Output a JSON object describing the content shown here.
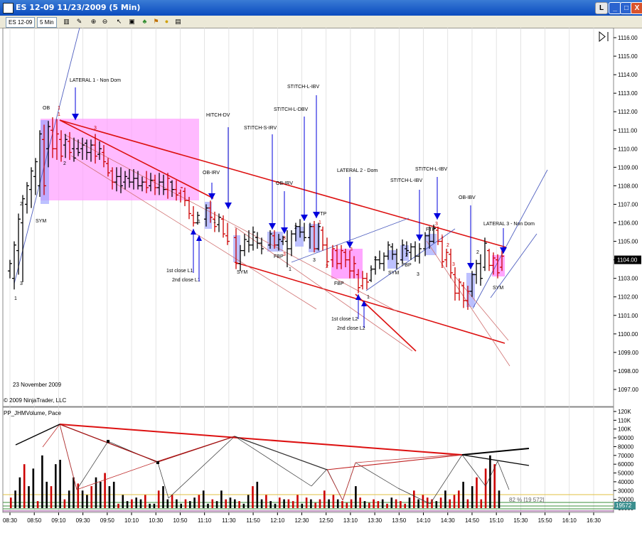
{
  "window": {
    "title": "ES 12-09  11/23/2009 (5 Min)",
    "btn_l": "L",
    "btn_min": "_",
    "btn_max": "□",
    "btn_close": "X"
  },
  "toolbar": {
    "instrument": "ES 12-09",
    "interval": "5 Min",
    "icons": [
      "bar-style-icon",
      "pencil-icon",
      "zoom-in-icon",
      "zoom-out-icon",
      "pointer-icon",
      "data-box-icon",
      "strategy-icon",
      "indicator-icon",
      "gold-icon",
      "properties-icon"
    ]
  },
  "chart": {
    "date_label": "23 November 2009",
    "copyright": "© 2009 NinjaTrader, LLC",
    "price_axis": [
      "1116.00",
      "1115.00",
      "1114.00",
      "1113.00",
      "1112.00",
      "1111.00",
      "1110.00",
      "1109.00",
      "1108.00",
      "1107.00",
      "1106.00",
      "1105.00",
      "1104.00",
      "1103.00",
      "1102.00",
      "1101.00",
      "1100.00",
      "1099.00",
      "1098.00",
      "1097.00"
    ],
    "current_price": "1104.00",
    "time_axis": [
      "08:30",
      "08:50",
      "09:10",
      "09:30",
      "09:50",
      "10:10",
      "10:30",
      "10:50",
      "11:10",
      "11:30",
      "11:50",
      "12:10",
      "12:30",
      "12:50",
      "13:10",
      "13:30",
      "13:50",
      "14:10",
      "14:30",
      "14:50",
      "15:10",
      "15:30",
      "15:50",
      "16:10",
      "16:30"
    ],
    "annotations": [
      "LATERAL 1 - Non Dom",
      "HITCH-DV",
      "STITCH-S-IRV",
      "STITCH-L-DBV",
      "STITCH-L-IBV",
      "OB-IRV",
      "OB-IRV",
      "LATERAL 2 - Dom",
      "STITCH-L-IBV",
      "STITCH-L-IBV",
      "OB-IBV",
      "LATERAL 3 - Non Dom",
      "OB",
      "SYM",
      "FTP",
      "FBP",
      "FBP",
      "FBP",
      "FTP",
      "SYM",
      "SYM",
      "SYM",
      "1st close L1",
      "2nd close L1",
      "1st close L2",
      "2nd close L2"
    ],
    "bar_numbers": [
      "1",
      "1",
      "2",
      "3",
      "3",
      "1",
      "2",
      "3",
      "1",
      "2",
      "1",
      "3",
      "2",
      "1",
      "2",
      "3",
      "1",
      "3",
      "2",
      "3",
      "1",
      "1",
      "2",
      "2",
      "3",
      "3",
      "1",
      "1"
    ]
  },
  "volume_panel": {
    "title": "PP_JHMVolume, Pace",
    "axis": [
      "120K",
      "110K",
      "100K",
      "90000",
      "80000",
      "70000",
      "60000",
      "50000",
      "40000",
      "30000",
      "20000",
      "10000"
    ],
    "current_value": "19572",
    "pace_label": "82 % [19 572]"
  },
  "colors": {
    "up": "#000000",
    "down": "#cc0000",
    "box_pink": "#ff80ff",
    "box_blue": "#9aa0ff",
    "arrow": "#0000dd",
    "trend": "#dd1111"
  }
}
